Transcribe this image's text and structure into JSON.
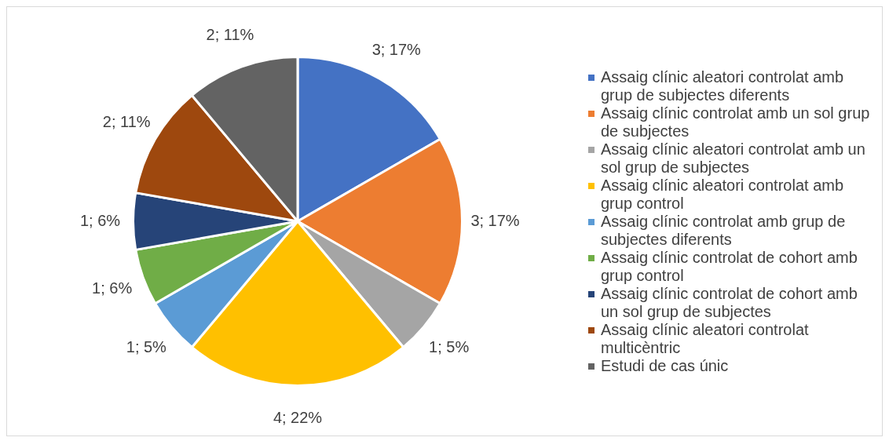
{
  "chart_data": {
    "type": "pie",
    "categories": [
      "Assaig clínic aleatori controlat amb grup de subjectes diferents",
      "Assaig clínic controlat amb un sol grup de subjectes",
      "Assaig clínic aleatori controlat amb un sol grup de subjectes",
      "Assaig clínic aleatori controlat amb grup control",
      "Assaig clínic controlat amb grup de subjectes diferents",
      "Assaig clínic controlat de cohort amb grup control",
      "Assaig clínic controlat de cohort amb un sol grup de subjectes",
      "Assaig clínic aleatori controlat multicèntric",
      "Estudi de cas únic"
    ],
    "values": [
      3,
      3,
      1,
      4,
      1,
      1,
      1,
      2,
      2
    ],
    "value_labels": [
      "3; 17%",
      "3; 17%",
      "1; 5%",
      "4; 22%",
      "1; 5%",
      "1; 6%",
      "1; 6%",
      "2; 11%",
      "2; 11%"
    ],
    "colors": [
      "#4472c4",
      "#ed7d31",
      "#a5a5a5",
      "#ffc000",
      "#5b9bd5",
      "#70ad47",
      "#264478",
      "#9e480e",
      "#636363"
    ],
    "legend": "right"
  }
}
